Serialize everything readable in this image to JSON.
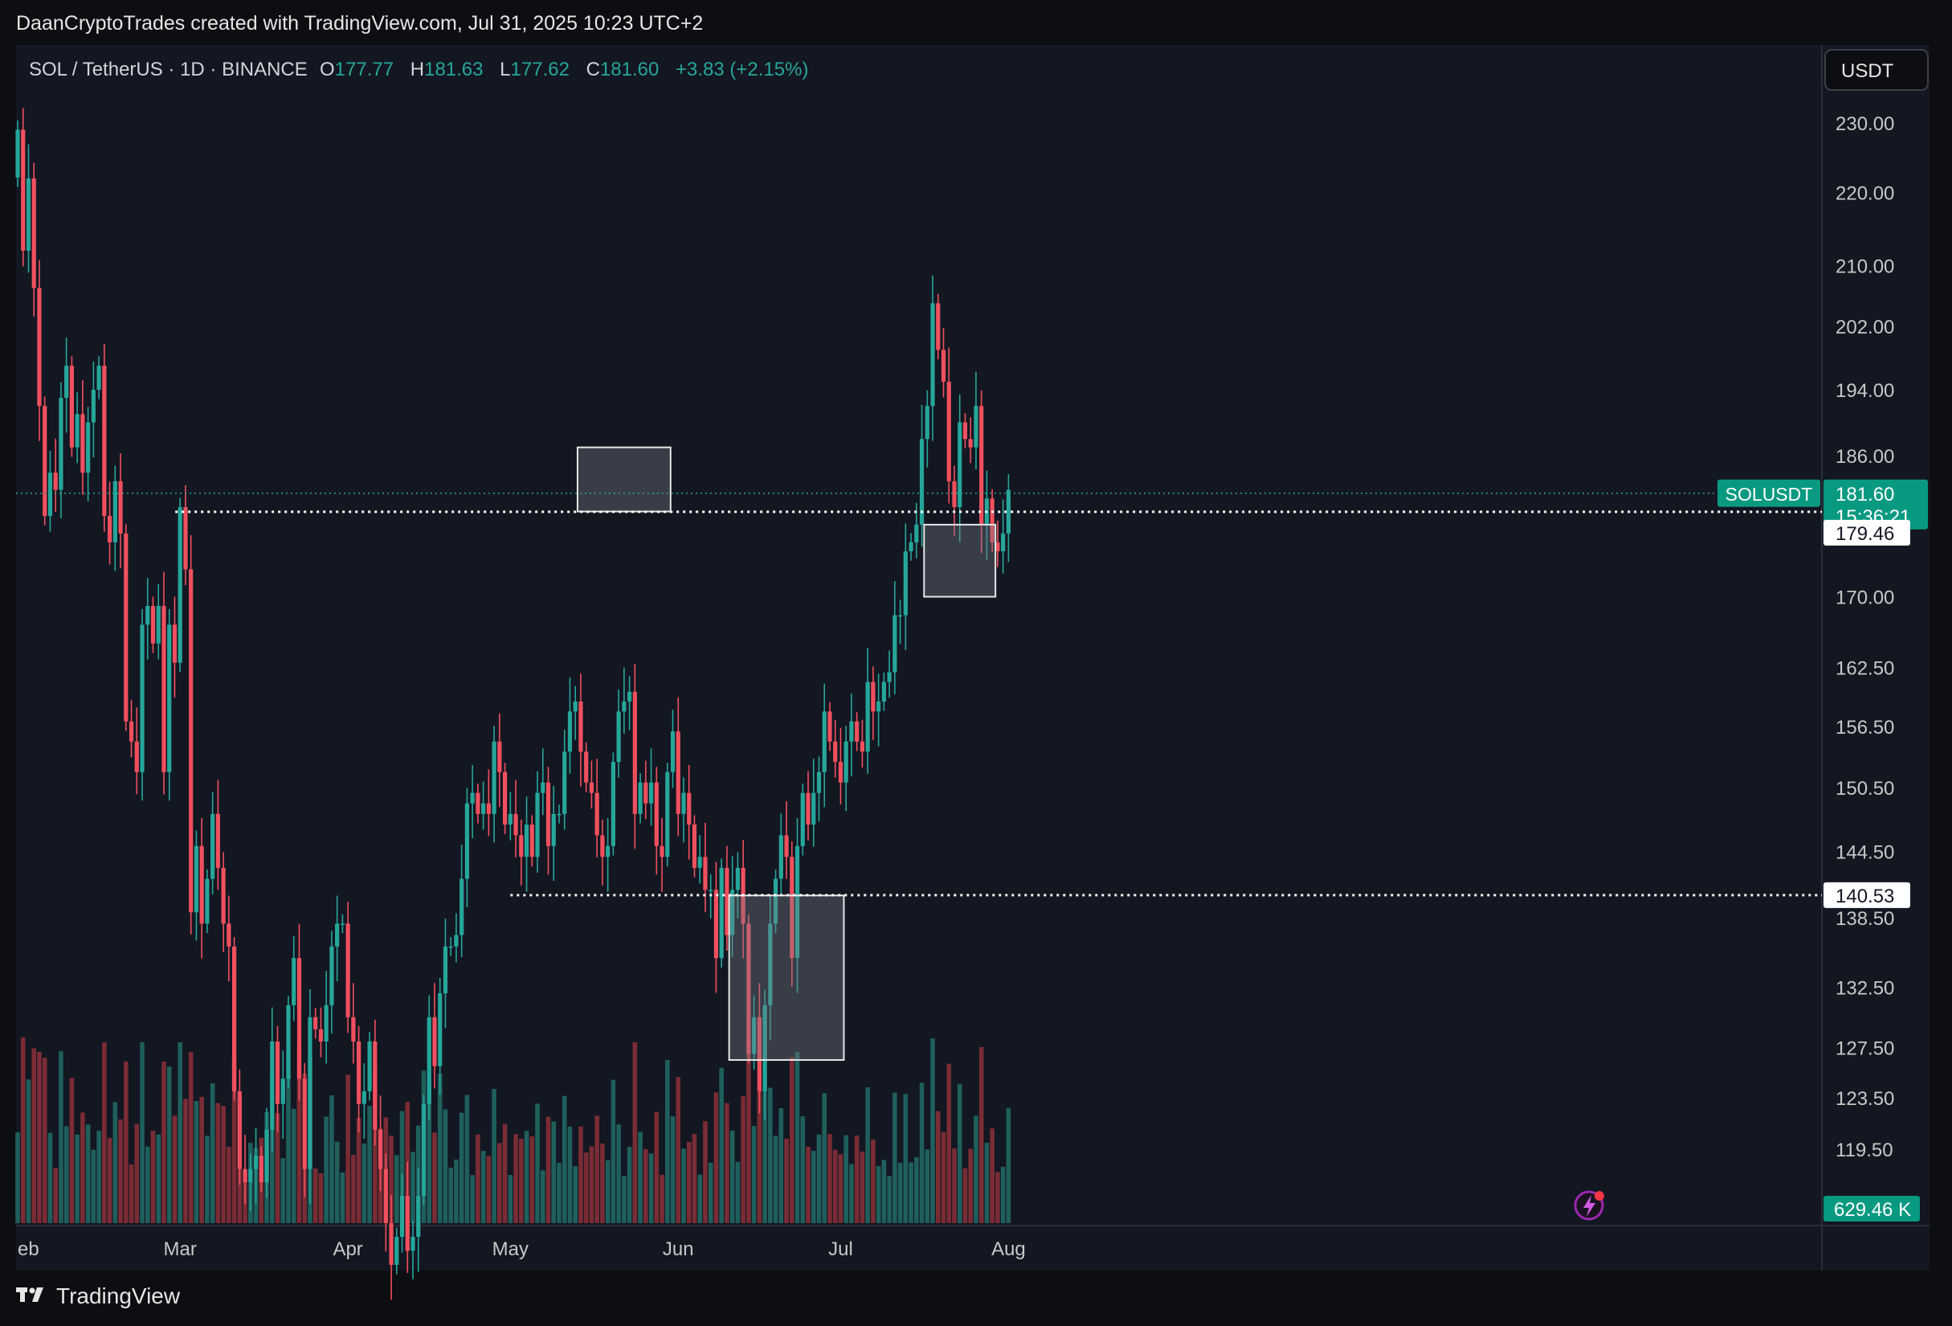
{
  "header": {
    "attribution": "DaanCryptoTrades created with TradingView.com, Jul 31, 2025 10:23 UTC+2"
  },
  "symbol_info": {
    "name": "SOL / TetherUS · 1D · BINANCE",
    "open_label": "O",
    "open": "177.77",
    "high_label": "H",
    "high": "181.63",
    "low_label": "L",
    "low": "177.62",
    "close_label": "C",
    "close": "181.60",
    "change": "+3.83 (+2.15%)"
  },
  "currency_button": "USDT",
  "footer": {
    "brand": "TradingView",
    "logo_icon": "tradingview-logo-icon"
  },
  "colors": {
    "background": "#131722",
    "up": "#26a69a",
    "down": "#f0505e",
    "up_volume": "#1f5f5c",
    "down_volume": "#7a2c34",
    "axis_text": "#c8c8c8",
    "price_tag": "#089981"
  },
  "chart_data": {
    "type": "candlestick",
    "y_axis": {
      "ticks": [
        "230.00",
        "220.00",
        "210.00",
        "202.00",
        "194.00",
        "186.00",
        "170.00",
        "162.50",
        "156.50",
        "150.50",
        "144.50",
        "138.50",
        "132.50",
        "127.50",
        "123.50",
        "119.50"
      ],
      "tick_values": [
        230,
        220,
        210,
        202,
        194,
        186,
        170,
        162.5,
        156.5,
        150.5,
        144.5,
        138.5,
        132.5,
        127.5,
        123.5,
        119.5
      ],
      "scale": "log",
      "ylim": [
        115.5,
        234
      ]
    },
    "x_axis": {
      "labels": [
        {
          "text": "eb",
          "day": 0
        },
        {
          "text": "Mar",
          "day": 30
        },
        {
          "text": "Apr",
          "day": 61
        },
        {
          "text": "May",
          "day": 91
        },
        {
          "text": "Jun",
          "day": 122
        },
        {
          "text": "Jul",
          "day": 152
        },
        {
          "text": "Aug",
          "day": 183
        }
      ],
      "note": "days are counted from Jan 31 2025; one candle per day"
    },
    "closes": [
      229,
      212,
      222,
      207,
      192,
      179,
      184,
      182,
      193,
      197,
      187,
      191,
      184,
      190,
      194,
      197,
      179,
      176,
      183,
      177,
      157,
      155,
      152,
      167,
      169,
      165,
      169,
      152,
      167,
      163,
      180,
      173,
      139,
      145,
      138,
      142,
      148,
      143,
      138,
      136,
      124,
      118,
      117,
      118,
      119,
      117,
      121,
      128,
      123,
      125,
      131,
      135,
      125,
      118,
      130,
      129,
      128,
      131,
      136,
      138,
      138,
      130,
      128,
      123,
      124,
      128,
      121,
      118,
      114,
      111,
      113,
      116,
      112,
      113,
      116,
      123,
      130,
      126,
      132,
      136,
      136,
      137,
      142,
      149,
      150,
      148,
      149,
      148,
      155,
      152,
      147,
      148,
      146,
      144,
      147,
      144,
      150,
      151,
      145,
      148,
      148,
      154,
      158,
      159,
      154,
      151,
      150,
      146,
      144,
      145,
      153,
      158,
      159,
      160,
      148,
      151,
      149,
      151,
      145,
      144,
      152,
      156,
      148,
      150,
      147,
      143,
      144,
      141,
      141,
      135,
      143,
      137,
      141,
      143,
      138,
      127,
      130,
      124,
      131,
      138,
      142,
      146,
      144,
      135,
      145,
      150,
      147,
      150,
      152,
      158,
      155,
      153,
      151,
      155,
      157,
      155,
      154,
      161,
      158,
      159,
      161,
      162,
      168,
      168,
      175,
      176,
      178,
      188,
      192,
      205,
      199,
      195,
      183,
      180,
      190,
      188,
      187,
      192,
      178,
      181,
      176,
      175,
      177,
      182
    ],
    "series": [
      {
        "name": "SOLUSDT",
        "values_ref": "closes"
      }
    ],
    "last_price": {
      "label": "SOLUSDT",
      "price": "181.60",
      "countdown": "15:36:21",
      "value": 181.6
    },
    "levels": [
      {
        "label": "179.46",
        "value": 179.46,
        "style": "dotted"
      },
      {
        "label": "140.53",
        "value": 140.53,
        "style": "dotted"
      }
    ],
    "zones": [
      {
        "from_day": 104,
        "to_day": 120,
        "low": 179.5,
        "high": 187
      },
      {
        "from_day": 132,
        "to_day": 152,
        "low": 126.5,
        "high": 140.5
      },
      {
        "from_day": 168,
        "to_day": 180,
        "low": 170,
        "high": 178
      }
    ],
    "volume_label": "629.46 K",
    "volume_max_label_value": 629.46,
    "grid": false,
    "legend": "top-left"
  }
}
